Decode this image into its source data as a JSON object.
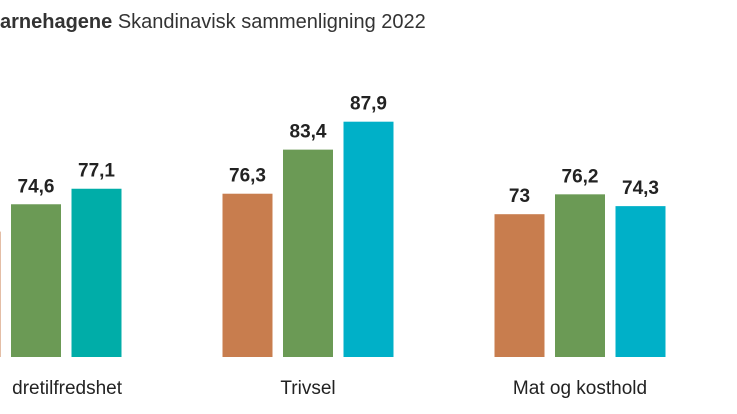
{
  "chart_data": {
    "type": "bar",
    "title_bold": "arnehagene",
    "title": "Skandinavisk sammenligning 2022",
    "categories": [
      "dretilfredshet",
      "Trivsel",
      "Mat og kosthold"
    ],
    "series": [
      {
        "color": "#c87d4e",
        "values": [
          70.2,
          76.3,
          73
        ],
        "value_labels": [
          null,
          "76,3",
          "73"
        ]
      },
      {
        "color": "#6b9a55",
        "values": [
          74.6,
          83.4,
          76.2
        ],
        "value_labels": [
          "74,6",
          "83,4",
          "76,2"
        ]
      },
      {
        "colors": [
          "#00ada8",
          "#00b0c8",
          "#00b0c8"
        ],
        "values": [
          77.1,
          87.9,
          74.3
        ],
        "value_labels": [
          "77,1",
          "87,9",
          "74,3"
        ]
      }
    ],
    "ylim": [
      50,
      107.5
    ]
  }
}
